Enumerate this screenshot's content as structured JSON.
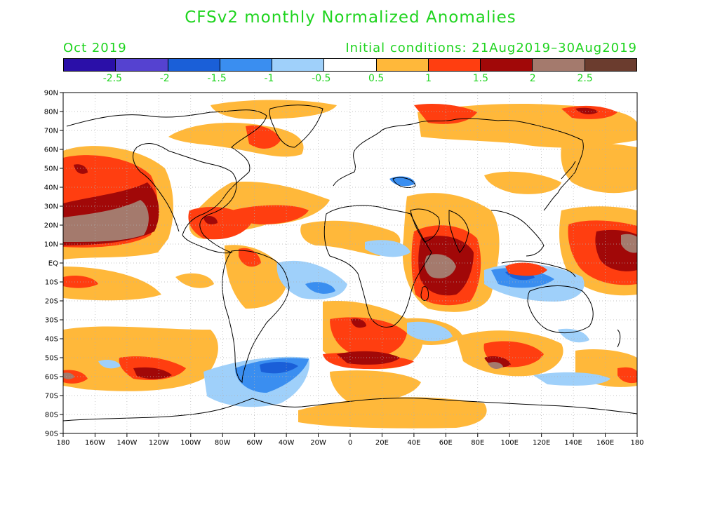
{
  "title": "CFSv2 monthly Normalized Anomalies",
  "valid_month": "Oct 2019",
  "initial_conditions": "Initial conditions: 21Aug2019–30Aug2019",
  "colorbar": {
    "colors": [
      "#2a0fa8",
      "#5542d0",
      "#1a5fd8",
      "#3a8ef0",
      "#9fd0fa",
      "#ffffff",
      "#ffb83a",
      "#ff3e10",
      "#a10808",
      "#a47a6d",
      "#6b3c2e"
    ],
    "labels": [
      "-2.5",
      "-2",
      "-1.5",
      "-1",
      "-0.5",
      "0.5",
      "1",
      "1.5",
      "2",
      "2.5"
    ]
  },
  "axes": {
    "lon_labels": [
      "180",
      "160W",
      "140W",
      "120W",
      "100W",
      "80W",
      "60W",
      "40W",
      "20W",
      "0",
      "20E",
      "40E",
      "60E",
      "80E",
      "100E",
      "120E",
      "140E",
      "160E",
      "180"
    ],
    "lat_labels": [
      "90N",
      "80N",
      "70N",
      "60N",
      "50N",
      "40N",
      "30N",
      "20N",
      "10N",
      "EQ",
      "10S",
      "20S",
      "30S",
      "40S",
      "50S",
      "60S",
      "70S",
      "80S",
      "90S"
    ]
  }
}
